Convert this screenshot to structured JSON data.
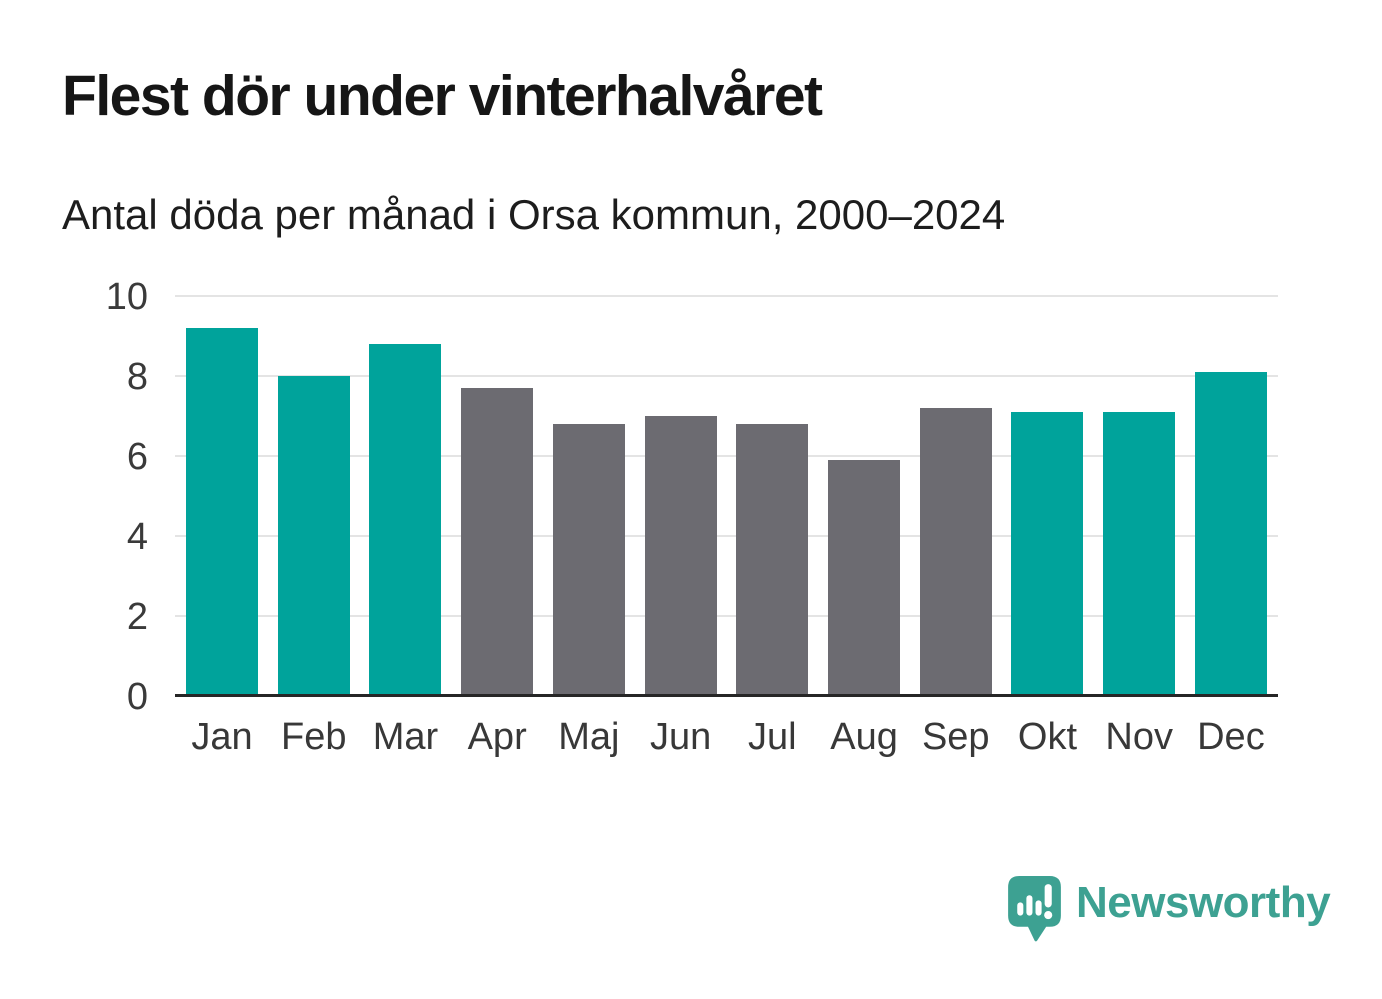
{
  "chart_data": {
    "type": "bar",
    "title": "Flest dör under vinterhalvåret",
    "subtitle": "Antal döda per månad i Orsa kommun, 2000–2024",
    "categories": [
      "Jan",
      "Feb",
      "Mar",
      "Apr",
      "Maj",
      "Jun",
      "Jul",
      "Aug",
      "Sep",
      "Okt",
      "Nov",
      "Dec"
    ],
    "values": [
      9.2,
      8.0,
      8.8,
      7.7,
      6.8,
      7.0,
      6.8,
      5.9,
      7.2,
      7.1,
      7.1,
      8.1
    ],
    "xlabel": "",
    "ylabel": "",
    "ylim": [
      0,
      10
    ],
    "yticks": [
      0,
      2,
      4,
      6,
      8,
      10
    ],
    "grid": true,
    "legend": "none",
    "colors": {
      "highlight": "#00a39b",
      "base": "#6c6b71"
    },
    "bar_colors": [
      "highlight",
      "highlight",
      "highlight",
      "base",
      "base",
      "base",
      "base",
      "base",
      "base",
      "highlight",
      "highlight",
      "highlight"
    ]
  },
  "footer": {
    "brand": "Newsworthy",
    "brand_color": "#3da192"
  }
}
